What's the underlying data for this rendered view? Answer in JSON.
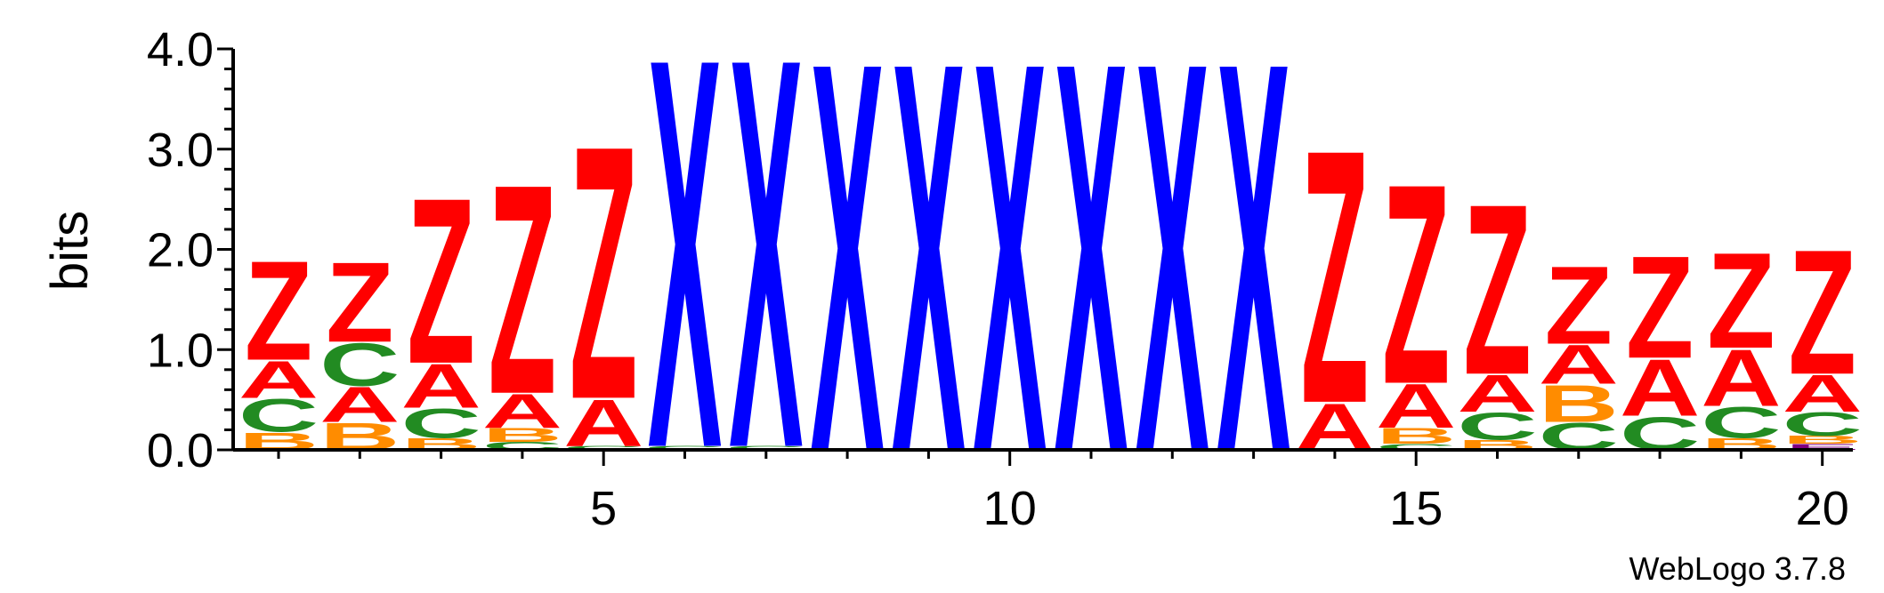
{
  "chart_data": {
    "type": "sequence-logo",
    "title": "",
    "xlabel": "",
    "ylabel": "bits",
    "ylim": [
      0,
      4.0
    ],
    "yticks": [
      "0.0",
      "1.0",
      "2.0",
      "3.0",
      "4.0"
    ],
    "xticks": [
      {
        "position": 5,
        "label": "5"
      },
      {
        "position": 10,
        "label": "10"
      },
      {
        "position": 15,
        "label": "15"
      },
      {
        "position": 20,
        "label": "20"
      }
    ],
    "colors": {
      "Z": "#ff0000",
      "A": "#ff0000",
      "C": "#228b22",
      "B": "#ff8c00",
      "X": "#0000ff",
      "E": "#800080"
    },
    "positions": [
      {
        "pos": 1,
        "stack": [
          {
            "letter": "B",
            "height": 0.18
          },
          {
            "letter": "C",
            "height": 0.34
          },
          {
            "letter": "A",
            "height": 0.38
          },
          {
            "letter": "Z",
            "height": 1.02
          }
        ]
      },
      {
        "pos": 2,
        "stack": [
          {
            "letter": "B",
            "height": 0.28
          },
          {
            "letter": "A",
            "height": 0.36
          },
          {
            "letter": "C",
            "height": 0.44
          },
          {
            "letter": "Z",
            "height": 0.82
          }
        ]
      },
      {
        "pos": 3,
        "stack": [
          {
            "letter": "B",
            "height": 0.12
          },
          {
            "letter": "C",
            "height": 0.3
          },
          {
            "letter": "A",
            "height": 0.45
          },
          {
            "letter": "Z",
            "height": 1.7
          }
        ]
      },
      {
        "pos": 4,
        "stack": [
          {
            "letter": "C",
            "height": 0.08
          },
          {
            "letter": "B",
            "height": 0.14
          },
          {
            "letter": "A",
            "height": 0.35
          },
          {
            "letter": "Z",
            "height": 2.15
          }
        ]
      },
      {
        "pos": 5,
        "stack": [
          {
            "letter": "C",
            "height": 0.04
          },
          {
            "letter": "A",
            "height": 0.48
          },
          {
            "letter": "Z",
            "height": 2.6
          }
        ]
      },
      {
        "pos": 6,
        "stack": [
          {
            "letter": "C",
            "height": 0.04
          },
          {
            "letter": "X",
            "height": 4.0
          }
        ]
      },
      {
        "pos": 7,
        "stack": [
          {
            "letter": "C",
            "height": 0.04
          },
          {
            "letter": "X",
            "height": 4.0
          }
        ]
      },
      {
        "pos": 8,
        "stack": [
          {
            "letter": "X",
            "height": 4.0
          }
        ]
      },
      {
        "pos": 9,
        "stack": [
          {
            "letter": "X",
            "height": 4.0
          }
        ]
      },
      {
        "pos": 10,
        "stack": [
          {
            "letter": "X",
            "height": 4.0
          }
        ]
      },
      {
        "pos": 11,
        "stack": [
          {
            "letter": "X",
            "height": 4.0
          }
        ]
      },
      {
        "pos": 12,
        "stack": [
          {
            "letter": "X",
            "height": 4.0
          }
        ]
      },
      {
        "pos": 13,
        "stack": [
          {
            "letter": "X",
            "height": 4.0
          }
        ]
      },
      {
        "pos": 14,
        "stack": [
          {
            "letter": "A",
            "height": 0.48
          },
          {
            "letter": "Z",
            "height": 2.6
          }
        ]
      },
      {
        "pos": 15,
        "stack": [
          {
            "letter": "C",
            "height": 0.06
          },
          {
            "letter": "B",
            "height": 0.16
          },
          {
            "letter": "A",
            "height": 0.45
          },
          {
            "letter": "Z",
            "height": 2.05
          }
        ]
      },
      {
        "pos": 16,
        "stack": [
          {
            "letter": "B",
            "height": 0.1
          },
          {
            "letter": "C",
            "height": 0.28
          },
          {
            "letter": "A",
            "height": 0.38
          },
          {
            "letter": "Z",
            "height": 1.75
          }
        ]
      },
      {
        "pos": 17,
        "stack": [
          {
            "letter": "C",
            "height": 0.28
          },
          {
            "letter": "B",
            "height": 0.38
          },
          {
            "letter": "A",
            "height": 0.4
          },
          {
            "letter": "Z",
            "height": 0.8
          }
        ]
      },
      {
        "pos": 18,
        "stack": [
          {
            "letter": "C",
            "height": 0.34
          },
          {
            "letter": "A",
            "height": 0.58
          },
          {
            "letter": "Z",
            "height": 1.05
          }
        ]
      },
      {
        "pos": 19,
        "stack": [
          {
            "letter": "B",
            "height": 0.12
          },
          {
            "letter": "C",
            "height": 0.32
          },
          {
            "letter": "A",
            "height": 0.58
          },
          {
            "letter": "Z",
            "height": 0.98
          }
        ]
      },
      {
        "pos": 20,
        "stack": [
          {
            "letter": "E",
            "height": 0.06
          },
          {
            "letter": "B",
            "height": 0.08
          },
          {
            "letter": "C",
            "height": 0.24
          },
          {
            "letter": "A",
            "height": 0.38
          },
          {
            "letter": "Z",
            "height": 1.28
          }
        ]
      }
    ]
  },
  "footer": {
    "credit": "WebLogo 3.7.8"
  }
}
